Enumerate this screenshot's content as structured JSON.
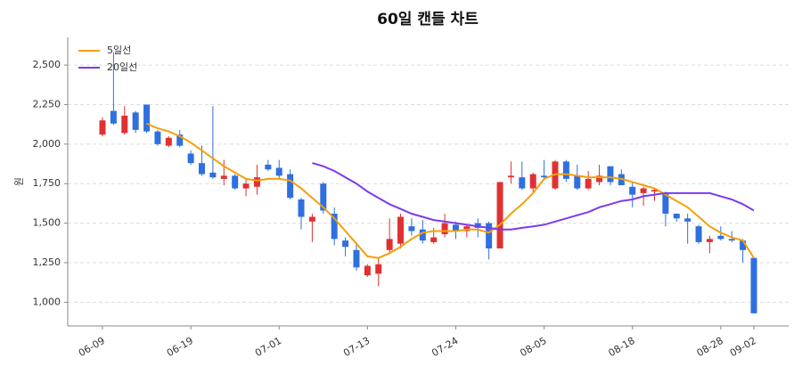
{
  "chart_data": {
    "type": "candlestick",
    "title": "60일 캔들 차트",
    "y_label": "원",
    "categories": [
      "06-09",
      null,
      null,
      null,
      null,
      null,
      null,
      null,
      "06-19",
      null,
      null,
      null,
      null,
      null,
      null,
      null,
      "07-01",
      null,
      null,
      null,
      null,
      null,
      null,
      null,
      "07-13",
      null,
      null,
      null,
      null,
      null,
      null,
      null,
      "07-24",
      null,
      null,
      null,
      null,
      null,
      null,
      null,
      "08-05",
      null,
      null,
      null,
      null,
      null,
      null,
      null,
      "08-18",
      null,
      null,
      null,
      null,
      null,
      null,
      null,
      "08-28",
      null,
      null,
      "09-02"
    ],
    "open": [
      2060,
      2210,
      2070,
      2200,
      2250,
      2080,
      1990,
      2060,
      1940,
      1880,
      1820,
      1780,
      1800,
      1720,
      1730,
      1870,
      1850,
      1810,
      1650,
      1510,
      1750,
      1560,
      1390,
      1330,
      1170,
      1180,
      1330,
      1370,
      1480,
      1460,
      1380,
      1430,
      1490,
      1450,
      1500,
      1500,
      1340,
      1790,
      1790,
      1720,
      1800,
      1720,
      1890,
      1800,
      1720,
      1760,
      1860,
      1810,
      1730,
      1690,
      1700,
      1690,
      1560,
      1530,
      1480,
      1380,
      1420,
      1400,
      1390,
      1280
    ],
    "high": [
      2170,
      2580,
      2240,
      2210,
      2250,
      2090,
      2050,
      2090,
      1960,
      1990,
      2240,
      1900,
      1810,
      1780,
      1870,
      1900,
      1900,
      1840,
      1660,
      1560,
      1760,
      1600,
      1410,
      1380,
      1240,
      1280,
      1530,
      1560,
      1530,
      1520,
      1470,
      1560,
      1510,
      1490,
      1530,
      1510,
      1760,
      1890,
      1890,
      1820,
      1900,
      1900,
      1900,
      1870,
      1830,
      1870,
      1860,
      1840,
      1760,
      1730,
      1720,
      1700,
      1560,
      1560,
      1490,
      1420,
      1480,
      1450,
      1400,
      1280
    ],
    "low": [
      2050,
      2120,
      2060,
      2070,
      2070,
      1990,
      1980,
      1980,
      1870,
      1800,
      1780,
      1740,
      1710,
      1670,
      1680,
      1830,
      1780,
      1650,
      1460,
      1380,
      1560,
      1360,
      1290,
      1200,
      1160,
      1100,
      1310,
      1340,
      1420,
      1370,
      1370,
      1410,
      1400,
      1410,
      1410,
      1270,
      1340,
      1750,
      1710,
      1690,
      1780,
      1710,
      1760,
      1710,
      1710,
      1740,
      1740,
      1740,
      1600,
      1610,
      1640,
      1480,
      1510,
      1370,
      1370,
      1310,
      1390,
      1380,
      1250,
      930
    ],
    "close": [
      2150,
      2130,
      2180,
      2090,
      2080,
      2000,
      2040,
      1990,
      1880,
      1810,
      1790,
      1800,
      1720,
      1750,
      1790,
      1840,
      1800,
      1660,
      1540,
      1540,
      1580,
      1400,
      1350,
      1220,
      1230,
      1240,
      1400,
      1540,
      1450,
      1390,
      1410,
      1500,
      1450,
      1480,
      1470,
      1340,
      1760,
      1800,
      1720,
      1810,
      1790,
      1890,
      1780,
      1720,
      1780,
      1800,
      1760,
      1740,
      1680,
      1720,
      1710,
      1560,
      1530,
      1510,
      1380,
      1400,
      1400,
      1390,
      1330,
      930
    ],
    "up_color": "#e03131",
    "down_color": "#2f6fe0",
    "series": [
      {
        "name": "5일선",
        "color": "#f59f0b",
        "values": [
          null,
          null,
          null,
          null,
          2130,
          2100,
          2080,
          2050,
          2010,
          1960,
          1910,
          1860,
          1820,
          1780,
          1770,
          1780,
          1780,
          1770,
          1720,
          1660,
          1600,
          1530,
          1450,
          1370,
          1290,
          1280,
          1310,
          1350,
          1400,
          1440,
          1450,
          1450,
          1450,
          1460,
          1460,
          1440,
          1490,
          1560,
          1620,
          1690,
          1780,
          1810,
          1810,
          1800,
          1790,
          1790,
          1790,
          1780,
          1760,
          1740,
          1720,
          1680,
          1640,
          1600,
          1540,
          1480,
          1440,
          1410,
          1390,
          1280
        ]
      },
      {
        "name": "20일선",
        "color": "#7c3aed",
        "values": [
          null,
          null,
          null,
          null,
          null,
          null,
          null,
          null,
          null,
          null,
          null,
          null,
          null,
          null,
          null,
          null,
          null,
          null,
          null,
          1880,
          1860,
          1830,
          1790,
          1750,
          1700,
          1660,
          1620,
          1590,
          1560,
          1540,
          1520,
          1510,
          1500,
          1490,
          1480,
          1470,
          1460,
          1460,
          1470,
          1480,
          1490,
          1510,
          1530,
          1550,
          1570,
          1600,
          1620,
          1640,
          1650,
          1670,
          1680,
          1690,
          1690,
          1690,
          1690,
          1690,
          1670,
          1650,
          1620,
          1580
        ]
      }
    ],
    "ylim": [
      850,
      2675
    ],
    "yticks": [
      {
        "value": 1000,
        "label": "1,000"
      },
      {
        "value": 1250,
        "label": "1,250"
      },
      {
        "value": 1500,
        "label": "1,500"
      },
      {
        "value": 1750,
        "label": "1,750"
      },
      {
        "value": 2000,
        "label": "2,000"
      },
      {
        "value": 2250,
        "label": "2,250"
      },
      {
        "value": 2500,
        "label": "2,500"
      }
    ],
    "grid": true,
    "legend": "upper left"
  }
}
